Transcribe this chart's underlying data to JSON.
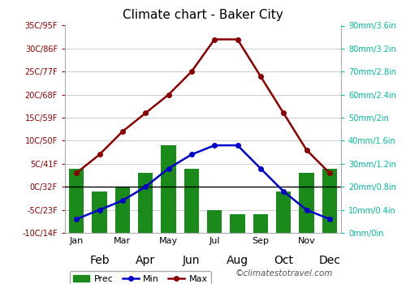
{
  "title": "Climate chart - Baker City",
  "months": [
    "Jan",
    "Feb",
    "Mar",
    "Apr",
    "May",
    "Jun",
    "Jul",
    "Aug",
    "Sep",
    "Oct",
    "Nov",
    "Dec"
  ],
  "prec_mm": [
    28,
    18,
    20,
    26,
    38,
    28,
    10,
    8,
    8,
    18,
    26,
    28
  ],
  "temp_min": [
    -7,
    -5,
    -3,
    0,
    4,
    7,
    9,
    9,
    4,
    -1,
    -5,
    -7
  ],
  "temp_max": [
    3,
    7,
    12,
    16,
    20,
    25,
    32,
    32,
    24,
    16,
    8,
    3
  ],
  "temp_ylim": [
    -10,
    35
  ],
  "temp_yticks": [
    -10,
    -5,
    0,
    5,
    10,
    15,
    20,
    25,
    30,
    35
  ],
  "temp_yticklabels": [
    "-10C/14F",
    "-5C/23F",
    "0C/32F",
    "5C/41F",
    "10C/50F",
    "15C/59F",
    "20C/68F",
    "25C/77F",
    "30C/86F",
    "35C/95F"
  ],
  "prec_ylim": [
    0,
    90
  ],
  "prec_yticks": [
    0,
    10,
    20,
    30,
    40,
    50,
    60,
    70,
    80,
    90
  ],
  "prec_yticklabels": [
    "0mm/0in",
    "10mm/0.4in",
    "20mm/0.8in",
    "30mm/1.2in",
    "40mm/1.6in",
    "50mm/2in",
    "60mm/2.4in",
    "70mm/2.8in",
    "80mm/3.2in",
    "90mm/3.6in"
  ],
  "bar_color": "#1a8a1a",
  "min_color": "#0000cc",
  "max_color": "#8b0000",
  "left_tick_color": "#8b0000",
  "right_tick_color": "#00bb99",
  "grid_color": "#cccccc",
  "bg_color": "#ffffff",
  "watermark": "©climatestotravel.com",
  "legend_labels": [
    "Prec",
    "Min",
    "Max"
  ],
  "odd_months": [
    "Jan",
    "Mar",
    "May",
    "Jul",
    "Sep",
    "Nov"
  ],
  "even_months": [
    "Feb",
    "Apr",
    "Jun",
    "Aug",
    "Oct",
    "Dec"
  ],
  "odd_indices": [
    0,
    2,
    4,
    6,
    8,
    10
  ],
  "even_indices": [
    1,
    3,
    5,
    7,
    9,
    11
  ]
}
